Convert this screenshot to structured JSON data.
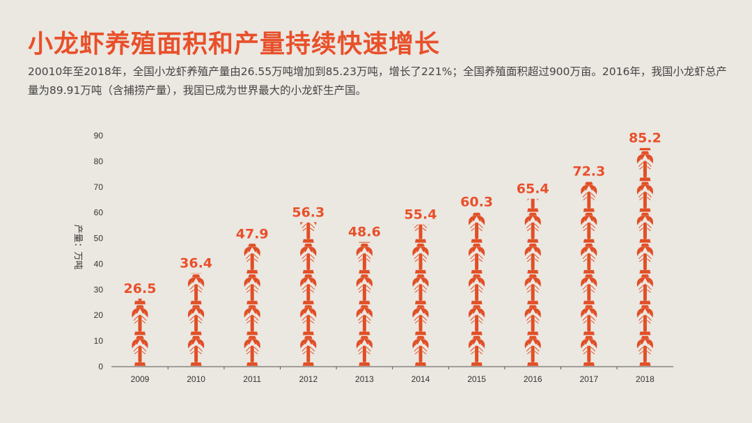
{
  "header": {
    "title": "小龙虾养殖面积和产量持续快速增长",
    "subtitle": "20010年至2018年，全国小龙虾养殖产量由26.55万吨增加到85.23万吨，增长了221%；全国养殖面积超过900万亩。2016年，我国小龙虾总产量为89.91万吨（含捕捞产量），我国已成为世界最大的小龙虾生产国。"
  },
  "chart_data": {
    "type": "bar",
    "style": "pictograph",
    "icon": "crayfish-icon",
    "categories": [
      "2009",
      "2010",
      "2011",
      "2012",
      "2013",
      "2014",
      "2015",
      "2016",
      "2017",
      "2018"
    ],
    "values": [
      26.5,
      36.4,
      47.9,
      56.3,
      48.6,
      55.4,
      60.3,
      65.4,
      72.3,
      85.2
    ],
    "data_labels": [
      "26.5",
      "36.4",
      "47.9",
      "56.3",
      "48.6",
      "55.4",
      "60.3",
      "65.4",
      "72.3",
      "85.2"
    ],
    "ylabel": "产量：万吨",
    "ylim": [
      0,
      90
    ],
    "yticks": [
      "0",
      "10",
      "20",
      "30",
      "40",
      "50",
      "60",
      "70",
      "80",
      "90"
    ],
    "grid": false,
    "colors": {
      "bar": "#e14f26",
      "label": "#e8502a",
      "title": "#e8502a"
    }
  }
}
